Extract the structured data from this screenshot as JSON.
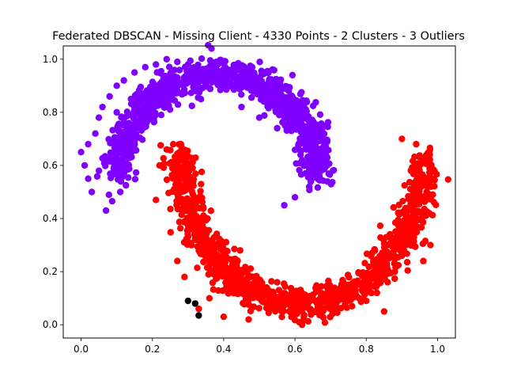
{
  "chart_data": {
    "type": "scatter",
    "title": "Federated DBSCAN - Missing Client - 4330 Points - 2 Clusters - 3 Outliers",
    "xlabel": "",
    "ylabel": "",
    "xlim": [
      -0.05,
      1.05
    ],
    "ylim": [
      -0.05,
      1.05
    ],
    "x_ticks": [
      "0.0",
      "0.2",
      "0.4",
      "0.6",
      "0.8",
      "1.0"
    ],
    "y_ticks": [
      "0.0",
      "0.2",
      "0.4",
      "0.6",
      "0.8",
      "1.0"
    ],
    "x_tick_values": [
      0.0,
      0.2,
      0.4,
      0.6,
      0.8,
      1.0
    ],
    "y_tick_values": [
      0.0,
      0.2,
      0.4,
      0.6,
      0.8,
      1.0
    ],
    "grid": false,
    "legend": "none",
    "series": [
      {
        "color": "#8000ff",
        "shape": "upper-moon",
        "points": [
          [
            0.0,
            0.65
          ],
          [
            0.01,
            0.6
          ],
          [
            0.02,
            0.55
          ],
          [
            0.03,
            0.5
          ],
          [
            0.02,
            0.68
          ],
          [
            0.04,
            0.72
          ],
          [
            0.05,
            0.78
          ],
          [
            0.06,
            0.82
          ],
          [
            0.08,
            0.86
          ],
          [
            0.1,
            0.9
          ],
          [
            0.12,
            0.92
          ],
          [
            0.15,
            0.95
          ],
          [
            0.18,
            0.97
          ],
          [
            0.21,
            0.98
          ],
          [
            0.24,
            1.0
          ],
          [
            0.27,
            0.99
          ],
          [
            0.3,
            0.98
          ],
          [
            0.33,
            0.96
          ],
          [
            0.36,
            0.95
          ],
          [
            0.4,
            0.94
          ],
          [
            0.43,
            0.93
          ],
          [
            0.46,
            0.9
          ],
          [
            0.49,
            0.88
          ],
          [
            0.52,
            0.85
          ],
          [
            0.55,
            0.82
          ],
          [
            0.57,
            0.78
          ],
          [
            0.59,
            0.73
          ],
          [
            0.61,
            0.68
          ],
          [
            0.62,
            0.62
          ],
          [
            0.63,
            0.57
          ],
          [
            0.64,
            0.52
          ],
          [
            0.6,
            0.48
          ],
          [
            0.57,
            0.45
          ],
          [
            0.66,
            0.56
          ],
          [
            0.07,
            0.43
          ],
          [
            0.11,
            0.5
          ],
          [
            0.08,
            0.62
          ],
          [
            0.1,
            0.8
          ],
          [
            0.2,
            0.88
          ],
          [
            0.25,
            0.92
          ],
          [
            0.45,
            0.82
          ],
          [
            0.5,
            0.78
          ],
          [
            0.55,
            0.74
          ],
          [
            0.48,
            0.97
          ],
          [
            0.38,
            0.99
          ],
          [
            0.65,
            0.65
          ],
          [
            0.62,
            0.75
          ],
          [
            0.32,
            0.91
          ],
          [
            0.14,
            0.85
          ],
          [
            0.05,
            0.58
          ]
        ]
      },
      {
        "color": "#ff0000",
        "shape": "lower-moon",
        "points": [
          [
            0.24,
            0.66
          ],
          [
            0.26,
            0.6
          ],
          [
            0.27,
            0.55
          ],
          [
            0.28,
            0.5
          ],
          [
            0.29,
            0.45
          ],
          [
            0.3,
            0.4
          ],
          [
            0.31,
            0.36
          ],
          [
            0.32,
            0.32
          ],
          [
            0.34,
            0.28
          ],
          [
            0.36,
            0.24
          ],
          [
            0.38,
            0.2
          ],
          [
            0.41,
            0.17
          ],
          [
            0.44,
            0.14
          ],
          [
            0.47,
            0.12
          ],
          [
            0.5,
            0.1
          ],
          [
            0.53,
            0.08
          ],
          [
            0.56,
            0.07
          ],
          [
            0.6,
            0.06
          ],
          [
            0.64,
            0.06
          ],
          [
            0.68,
            0.06
          ],
          [
            0.72,
            0.06
          ],
          [
            0.76,
            0.07
          ],
          [
            0.8,
            0.09
          ],
          [
            0.83,
            0.12
          ],
          [
            0.86,
            0.16
          ],
          [
            0.88,
            0.2
          ],
          [
            0.9,
            0.26
          ],
          [
            0.91,
            0.32
          ],
          [
            0.92,
            0.38
          ],
          [
            0.93,
            0.44
          ],
          [
            0.94,
            0.5
          ],
          [
            0.95,
            0.56
          ],
          [
            0.96,
            0.62
          ],
          [
            0.94,
            0.68
          ],
          [
            0.9,
            0.7
          ],
          [
            0.98,
            0.58
          ],
          [
            0.86,
            0.3
          ],
          [
            0.82,
            0.24
          ],
          [
            0.22,
            0.6
          ],
          [
            0.21,
            0.47
          ],
          [
            0.27,
            0.24
          ],
          [
            0.29,
            0.18
          ],
          [
            0.36,
            0.1
          ],
          [
            0.4,
            0.03
          ],
          [
            0.47,
            0.02
          ],
          [
            0.45,
            0.19
          ],
          [
            0.52,
            0.14
          ],
          [
            0.62,
            0.0
          ],
          [
            0.7,
            0.12
          ],
          [
            0.78,
            0.1
          ],
          [
            0.85,
            0.05
          ],
          [
            0.96,
            0.24
          ],
          [
            0.98,
            0.3
          ],
          [
            0.33,
            0.06
          ],
          [
            0.55,
            0.16
          ],
          [
            0.28,
            0.68
          ]
        ]
      },
      {
        "color": "#000000",
        "shape": "outliers",
        "points": [
          [
            0.3,
            0.09
          ],
          [
            0.32,
            0.08
          ],
          [
            0.33,
            0.035
          ]
        ]
      }
    ]
  }
}
